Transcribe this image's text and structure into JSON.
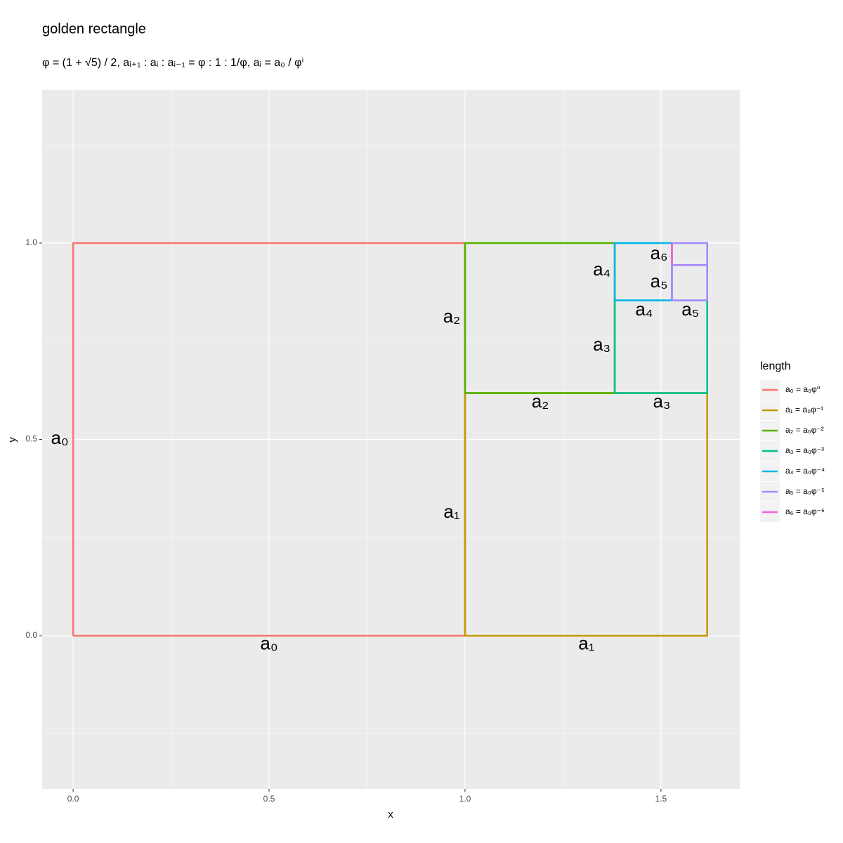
{
  "chart_data": {
    "type": "path",
    "title": "golden rectangle",
    "subtitle": "φ = (1 + √5) / 2,  aᵢ₊₁ : aᵢ : aᵢ₋₁ = φ : 1 : 1/φ,  aᵢ = a₀ / φⁱ",
    "x_label": "x",
    "y_label": "y",
    "legend_title": "length",
    "legend_position": "right",
    "grid": true,
    "xlim": [
      -0.079,
      1.701
    ],
    "ylim": [
      -0.39,
      1.39
    ],
    "xticks": [
      {
        "value": 0,
        "label": "0.0"
      },
      {
        "value": 0.5,
        "label": "0.5"
      },
      {
        "value": 1,
        "label": "1.0"
      },
      {
        "value": 1.5,
        "label": "1.5"
      }
    ],
    "yticks": [
      {
        "value": 0,
        "label": "0.0"
      },
      {
        "value": 0.5,
        "label": "0.5"
      },
      {
        "value": 1,
        "label": "1.0"
      }
    ],
    "minor_xticks": [
      0.25,
      0.75,
      1.25
    ],
    "minor_yticks": [
      -0.25,
      0.25,
      0.75,
      1.25
    ],
    "series": [
      {
        "name": "a₀ = a₀φ⁰",
        "color": "#F8766D",
        "x": [
          0,
          1,
          1,
          0,
          0
        ],
        "y": [
          0,
          0,
          1,
          1,
          0
        ]
      },
      {
        "name": "a₁ = a₀φ⁻¹",
        "color": "#C49A00",
        "x": [
          1,
          1.618,
          1.618,
          1,
          1
        ],
        "y": [
          0,
          0,
          0.618,
          0.618,
          0
        ]
      },
      {
        "name": "a₂ = a₀φ⁻²",
        "color": "#53B400",
        "x": [
          1,
          1.382,
          1.382,
          1,
          1
        ],
        "y": [
          0.618,
          0.618,
          1,
          1,
          0.618
        ]
      },
      {
        "name": "a₃ = a₀φ⁻³",
        "color": "#00C094",
        "x": [
          1.382,
          1.618,
          1.618,
          1.382,
          1.382
        ],
        "y": [
          0.618,
          0.618,
          0.854,
          0.854,
          0.618
        ]
      },
      {
        "name": "a₄ = a₀φ⁻⁴",
        "color": "#00B6EB",
        "x": [
          1.382,
          1.528,
          1.528,
          1.382,
          1.382
        ],
        "y": [
          0.854,
          0.854,
          1,
          1,
          0.854
        ]
      },
      {
        "name": "a₅ = a₀φ⁻⁵",
        "color": "#A58AFF",
        "x": [
          1.528,
          1.618,
          1.618,
          1.528,
          1.528,
          1.618,
          1.618
        ],
        "y": [
          0.944,
          0.944,
          0.854,
          0.854,
          1,
          1,
          0.944
        ]
      },
      {
        "name": "a₆ = a₀φ⁻⁶",
        "color": "#FB61D7",
        "x": [
          1.528,
          1.528
        ],
        "y": [
          0.944,
          1
        ]
      }
    ],
    "annotations": [
      {
        "text": "a₀",
        "x": 0.5,
        "y": -0.023
      },
      {
        "text": "a₀",
        "x": -0.034,
        "y": 0.501
      },
      {
        "text": "a₁",
        "x": 1.31,
        "y": -0.023
      },
      {
        "text": "a₁",
        "x": 0.966,
        "y": 0.313
      },
      {
        "text": "a₂",
        "x": 1.192,
        "y": 0.594
      },
      {
        "text": "a₂",
        "x": 0.966,
        "y": 0.81
      },
      {
        "text": "a₃",
        "x": 1.502,
        "y": 0.594
      },
      {
        "text": "a₃",
        "x": 1.349,
        "y": 0.739
      },
      {
        "text": "a₄",
        "x": 1.457,
        "y": 0.828
      },
      {
        "text": "a₄",
        "x": 1.349,
        "y": 0.93
      },
      {
        "text": "a₅",
        "x": 1.575,
        "y": 0.828
      },
      {
        "text": "a₅",
        "x": 1.495,
        "y": 0.9
      },
      {
        "text": "a₆",
        "x": 1.495,
        "y": 0.971
      }
    ]
  }
}
